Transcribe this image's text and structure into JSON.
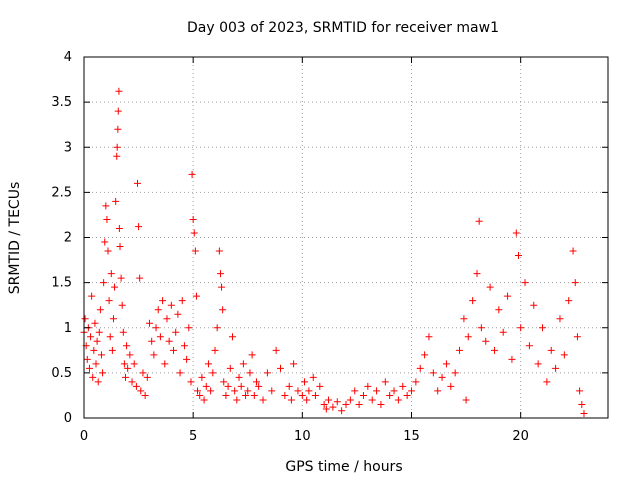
{
  "chart_data": {
    "type": "scatter",
    "title": "Day 003 of 2023, SRMTID for receiver maw1",
    "xlabel": "GPS time / hours",
    "ylabel": "SRMTID / TECUs",
    "xlim": [
      0,
      24
    ],
    "ylim": [
      0,
      4
    ],
    "xticks": [
      0,
      5,
      10,
      15,
      20
    ],
    "xtick_labels": [
      "0",
      "5",
      "10",
      "15",
      "20"
    ],
    "yticks": [
      0,
      0.5,
      1,
      1.5,
      2,
      2.5,
      3,
      3.5,
      4
    ],
    "ytick_labels": [
      "0",
      "0.5",
      "1",
      "1.5",
      "2",
      "2.5",
      "3",
      "3.5",
      "4"
    ],
    "grid": true,
    "marker": "plus",
    "color": "#ff0000",
    "series": [
      {
        "name": "maw1",
        "points": [
          [
            0.0,
            0.95
          ],
          [
            0.05,
            1.1
          ],
          [
            0.1,
            0.8
          ],
          [
            0.15,
            0.65
          ],
          [
            0.2,
            1.0
          ],
          [
            0.25,
            0.55
          ],
          [
            0.3,
            0.9
          ],
          [
            0.35,
            1.35
          ],
          [
            0.4,
            0.45
          ],
          [
            0.45,
            0.75
          ],
          [
            0.5,
            1.05
          ],
          [
            0.55,
            0.6
          ],
          [
            0.6,
            0.85
          ],
          [
            0.65,
            0.4
          ],
          [
            0.7,
            0.95
          ],
          [
            0.75,
            1.2
          ],
          [
            0.8,
            0.7
          ],
          [
            0.85,
            0.5
          ],
          [
            0.9,
            1.5
          ],
          [
            0.95,
            1.95
          ],
          [
            1.0,
            2.35
          ],
          [
            1.05,
            2.2
          ],
          [
            1.1,
            1.85
          ],
          [
            1.15,
            1.3
          ],
          [
            1.2,
            0.9
          ],
          [
            1.25,
            1.6
          ],
          [
            1.3,
            0.75
          ],
          [
            1.35,
            1.1
          ],
          [
            1.4,
            1.45
          ],
          [
            1.45,
            2.4
          ],
          [
            1.5,
            2.9
          ],
          [
            1.52,
            3.0
          ],
          [
            1.55,
            3.2
          ],
          [
            1.57,
            3.4
          ],
          [
            1.6,
            3.62
          ],
          [
            1.62,
            2.1
          ],
          [
            1.65,
            1.9
          ],
          [
            1.7,
            1.55
          ],
          [
            1.75,
            1.25
          ],
          [
            1.8,
            0.95
          ],
          [
            1.85,
            0.6
          ],
          [
            1.9,
            0.45
          ],
          [
            1.95,
            0.8
          ],
          [
            2.0,
            0.55
          ],
          [
            2.1,
            0.7
          ],
          [
            2.2,
            0.4
          ],
          [
            2.3,
            0.6
          ],
          [
            2.4,
            0.35
          ],
          [
            2.45,
            2.6
          ],
          [
            2.5,
            2.12
          ],
          [
            2.55,
            1.55
          ],
          [
            2.6,
            0.3
          ],
          [
            2.7,
            0.5
          ],
          [
            2.8,
            0.25
          ],
          [
            2.9,
            0.45
          ],
          [
            3.0,
            1.05
          ],
          [
            3.1,
            0.85
          ],
          [
            3.2,
            0.7
          ],
          [
            3.3,
            1.0
          ],
          [
            3.4,
            1.2
          ],
          [
            3.5,
            0.9
          ],
          [
            3.6,
            1.3
          ],
          [
            3.7,
            0.6
          ],
          [
            3.8,
            1.1
          ],
          [
            3.9,
            0.85
          ],
          [
            4.0,
            1.25
          ],
          [
            4.1,
            0.75
          ],
          [
            4.2,
            0.95
          ],
          [
            4.3,
            1.15
          ],
          [
            4.4,
            0.5
          ],
          [
            4.5,
            1.3
          ],
          [
            4.6,
            0.8
          ],
          [
            4.7,
            0.65
          ],
          [
            4.8,
            1.0
          ],
          [
            4.9,
            0.4
          ],
          [
            4.95,
            2.7
          ],
          [
            5.0,
            2.2
          ],
          [
            5.05,
            2.05
          ],
          [
            5.1,
            1.85
          ],
          [
            5.15,
            1.35
          ],
          [
            5.2,
            0.3
          ],
          [
            5.3,
            0.25
          ],
          [
            5.4,
            0.45
          ],
          [
            5.5,
            0.2
          ],
          [
            5.6,
            0.35
          ],
          [
            5.7,
            0.6
          ],
          [
            5.8,
            0.3
          ],
          [
            5.9,
            0.5
          ],
          [
            6.0,
            0.75
          ],
          [
            6.1,
            1.0
          ],
          [
            6.2,
            1.85
          ],
          [
            6.25,
            1.6
          ],
          [
            6.3,
            1.45
          ],
          [
            6.35,
            1.2
          ],
          [
            6.4,
            0.4
          ],
          [
            6.5,
            0.25
          ],
          [
            6.6,
            0.35
          ],
          [
            6.7,
            0.55
          ],
          [
            6.8,
            0.9
          ],
          [
            6.9,
            0.3
          ],
          [
            7.0,
            0.2
          ],
          [
            7.1,
            0.45
          ],
          [
            7.2,
            0.35
          ],
          [
            7.3,
            0.6
          ],
          [
            7.4,
            0.25
          ],
          [
            7.5,
            0.3
          ],
          [
            7.6,
            0.5
          ],
          [
            7.7,
            0.7
          ],
          [
            7.8,
            0.25
          ],
          [
            7.9,
            0.4
          ],
          [
            8.0,
            0.35
          ],
          [
            8.2,
            0.2
          ],
          [
            8.4,
            0.5
          ],
          [
            8.6,
            0.3
          ],
          [
            8.8,
            0.75
          ],
          [
            9.0,
            0.55
          ],
          [
            9.2,
            0.25
          ],
          [
            9.4,
            0.35
          ],
          [
            9.5,
            0.2
          ],
          [
            9.6,
            0.6
          ],
          [
            9.8,
            0.3
          ],
          [
            10.0,
            0.25
          ],
          [
            10.1,
            0.4
          ],
          [
            10.2,
            0.2
          ],
          [
            10.3,
            0.3
          ],
          [
            10.5,
            0.45
          ],
          [
            10.6,
            0.25
          ],
          [
            10.8,
            0.35
          ],
          [
            11.0,
            0.15
          ],
          [
            11.1,
            0.1
          ],
          [
            11.2,
            0.2
          ],
          [
            11.4,
            0.12
          ],
          [
            11.6,
            0.18
          ],
          [
            11.8,
            0.08
          ],
          [
            12.0,
            0.15
          ],
          [
            12.2,
            0.2
          ],
          [
            12.4,
            0.3
          ],
          [
            12.6,
            0.15
          ],
          [
            12.8,
            0.25
          ],
          [
            13.0,
            0.35
          ],
          [
            13.2,
            0.2
          ],
          [
            13.4,
            0.3
          ],
          [
            13.6,
            0.15
          ],
          [
            13.8,
            0.4
          ],
          [
            14.0,
            0.25
          ],
          [
            14.2,
            0.3
          ],
          [
            14.4,
            0.2
          ],
          [
            14.6,
            0.35
          ],
          [
            14.8,
            0.25
          ],
          [
            15.0,
            0.3
          ],
          [
            15.2,
            0.4
          ],
          [
            15.4,
            0.55
          ],
          [
            15.6,
            0.7
          ],
          [
            15.8,
            0.9
          ],
          [
            16.0,
            0.5
          ],
          [
            16.2,
            0.3
          ],
          [
            16.4,
            0.45
          ],
          [
            16.6,
            0.6
          ],
          [
            16.8,
            0.35
          ],
          [
            17.0,
            0.5
          ],
          [
            17.2,
            0.75
          ],
          [
            17.4,
            1.1
          ],
          [
            17.5,
            0.2
          ],
          [
            17.6,
            0.9
          ],
          [
            17.8,
            1.3
          ],
          [
            18.0,
            1.6
          ],
          [
            18.1,
            2.18
          ],
          [
            18.2,
            1.0
          ],
          [
            18.4,
            0.85
          ],
          [
            18.6,
            1.45
          ],
          [
            18.8,
            0.75
          ],
          [
            19.0,
            1.2
          ],
          [
            19.2,
            0.95
          ],
          [
            19.4,
            1.35
          ],
          [
            19.6,
            0.65
          ],
          [
            19.8,
            2.05
          ],
          [
            19.9,
            1.8
          ],
          [
            20.0,
            1.0
          ],
          [
            20.2,
            1.5
          ],
          [
            20.4,
            0.8
          ],
          [
            20.6,
            1.25
          ],
          [
            20.8,
            0.6
          ],
          [
            21.0,
            1.0
          ],
          [
            21.2,
            0.4
          ],
          [
            21.4,
            0.75
          ],
          [
            21.6,
            0.55
          ],
          [
            21.8,
            1.1
          ],
          [
            22.0,
            0.7
          ],
          [
            22.2,
            1.3
          ],
          [
            22.4,
            1.85
          ],
          [
            22.5,
            1.5
          ],
          [
            22.6,
            0.9
          ],
          [
            22.7,
            0.3
          ],
          [
            22.8,
            0.15
          ],
          [
            22.9,
            0.05
          ]
        ]
      }
    ]
  }
}
